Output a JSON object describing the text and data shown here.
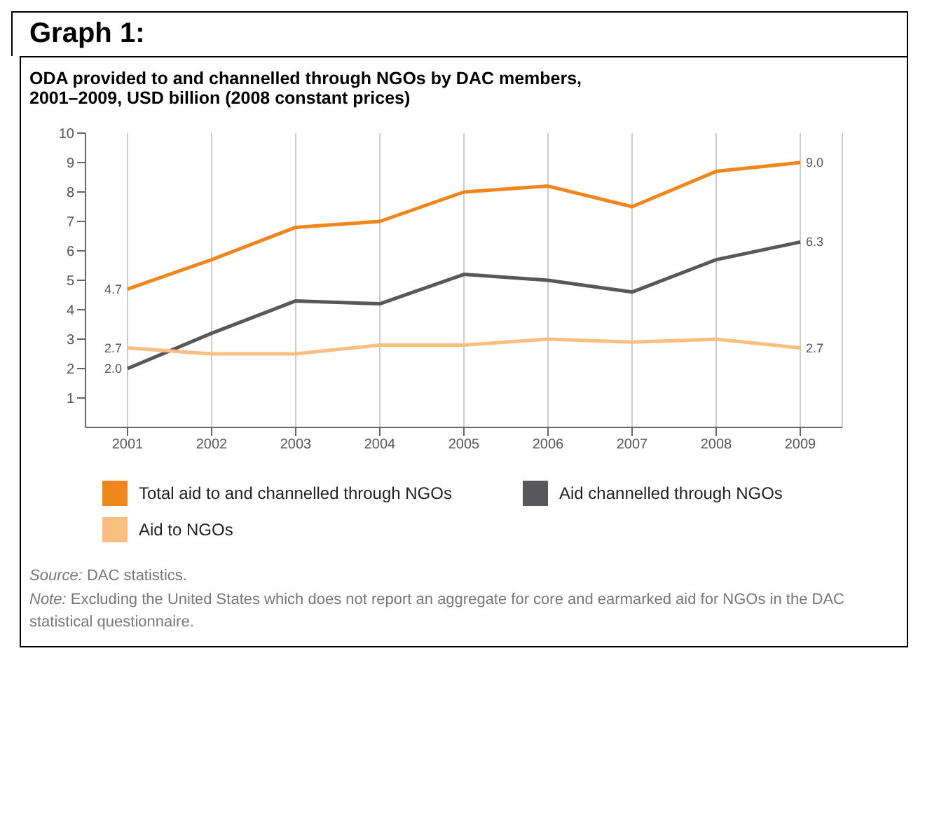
{
  "chart_data": {
    "type": "line",
    "title": "Graph 1:",
    "subtitle": "ODA provided to and channelled through NGOs by DAC members,\n2001–2009, USD billion (2008 constant prices)",
    "categories": [
      "2001",
      "2002",
      "2003",
      "2004",
      "2005",
      "2006",
      "2007",
      "2008",
      "2009"
    ],
    "series": [
      {
        "name": "Total aid to and channelled through NGOs",
        "color": "#f0861e",
        "values": [
          4.7,
          5.7,
          6.8,
          7.0,
          8.0,
          8.2,
          7.5,
          8.7,
          9.0
        ],
        "value_labels": [
          "4.7",
          null,
          null,
          null,
          null,
          null,
          null,
          null,
          "9.0"
        ]
      },
      {
        "name": "Aid channelled through NGOs",
        "color": "#58585a",
        "values": [
          2.0,
          3.2,
          4.3,
          4.2,
          5.2,
          5.0,
          4.6,
          5.7,
          6.3
        ],
        "value_labels": [
          "2.0",
          null,
          null,
          null,
          null,
          null,
          null,
          null,
          "6.3"
        ]
      },
      {
        "name": "Aid to NGOs",
        "color": "#f9bf80",
        "values": [
          2.7,
          2.5,
          2.5,
          2.8,
          2.8,
          3.0,
          2.9,
          3.0,
          2.7
        ],
        "value_labels": [
          "2.7",
          null,
          null,
          null,
          null,
          null,
          null,
          null,
          "2.7"
        ]
      }
    ],
    "ylim": [
      0,
      10
    ],
    "yticks": [
      1,
      2,
      3,
      4,
      5,
      6,
      7,
      8,
      9,
      10
    ],
    "grid": "x",
    "legend": "bottom",
    "marker": "none",
    "line_style": "solid",
    "annotations": [
      "Source: DAC statistics.",
      "Note: Excluding the United States which does not report an aggregate for core and earmarked aid for NGOs in the DAC statistical questionnaire."
    ]
  }
}
